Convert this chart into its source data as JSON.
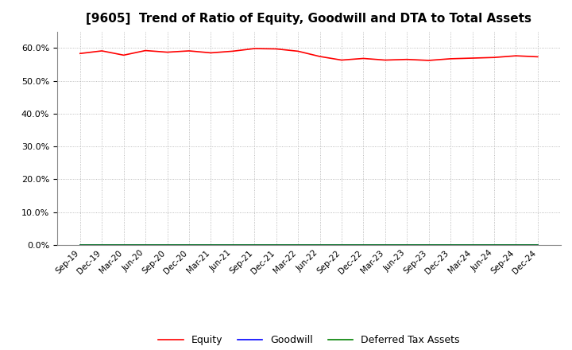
{
  "title": "[9605]  Trend of Ratio of Equity, Goodwill and DTA to Total Assets",
  "x_labels": [
    "Sep-19",
    "Dec-19",
    "Mar-20",
    "Jun-20",
    "Sep-20",
    "Dec-20",
    "Mar-21",
    "Jun-21",
    "Sep-21",
    "Dec-21",
    "Mar-22",
    "Jun-22",
    "Sep-22",
    "Dec-22",
    "Mar-23",
    "Jun-23",
    "Sep-23",
    "Dec-23",
    "Mar-24",
    "Jun-24",
    "Sep-24",
    "Dec-24"
  ],
  "equity": [
    0.583,
    0.591,
    0.578,
    0.592,
    0.587,
    0.591,
    0.585,
    0.59,
    0.598,
    0.597,
    0.59,
    0.574,
    0.563,
    0.568,
    0.563,
    0.565,
    0.562,
    0.567,
    0.569,
    0.571,
    0.576,
    0.573
  ],
  "goodwill": [
    0.0,
    0.0,
    0.0,
    0.0,
    0.0,
    0.0,
    0.0,
    0.0,
    0.0,
    0.0,
    0.0,
    0.0,
    0.0,
    0.0,
    0.0,
    0.0,
    0.0,
    0.0,
    0.0,
    0.0,
    0.0,
    0.0
  ],
  "dta": [
    0.0,
    0.0,
    0.0,
    0.0,
    0.0,
    0.0,
    0.0,
    0.0,
    0.0,
    0.0,
    0.0,
    0.0,
    0.0,
    0.0,
    0.0,
    0.0,
    0.0,
    0.0,
    0.0,
    0.0,
    0.0,
    0.0
  ],
  "equity_color": "#ff0000",
  "goodwill_color": "#0000ff",
  "dta_color": "#008000",
  "ylim": [
    0.0,
    0.65
  ],
  "yticks": [
    0.0,
    0.1,
    0.2,
    0.3,
    0.4,
    0.5,
    0.6
  ],
  "background_color": "#ffffff",
  "plot_bg_color": "#ffffff",
  "grid_color": "#aaaaaa",
  "title_fontsize": 11,
  "legend_labels": [
    "Equity",
    "Goodwill",
    "Deferred Tax Assets"
  ]
}
